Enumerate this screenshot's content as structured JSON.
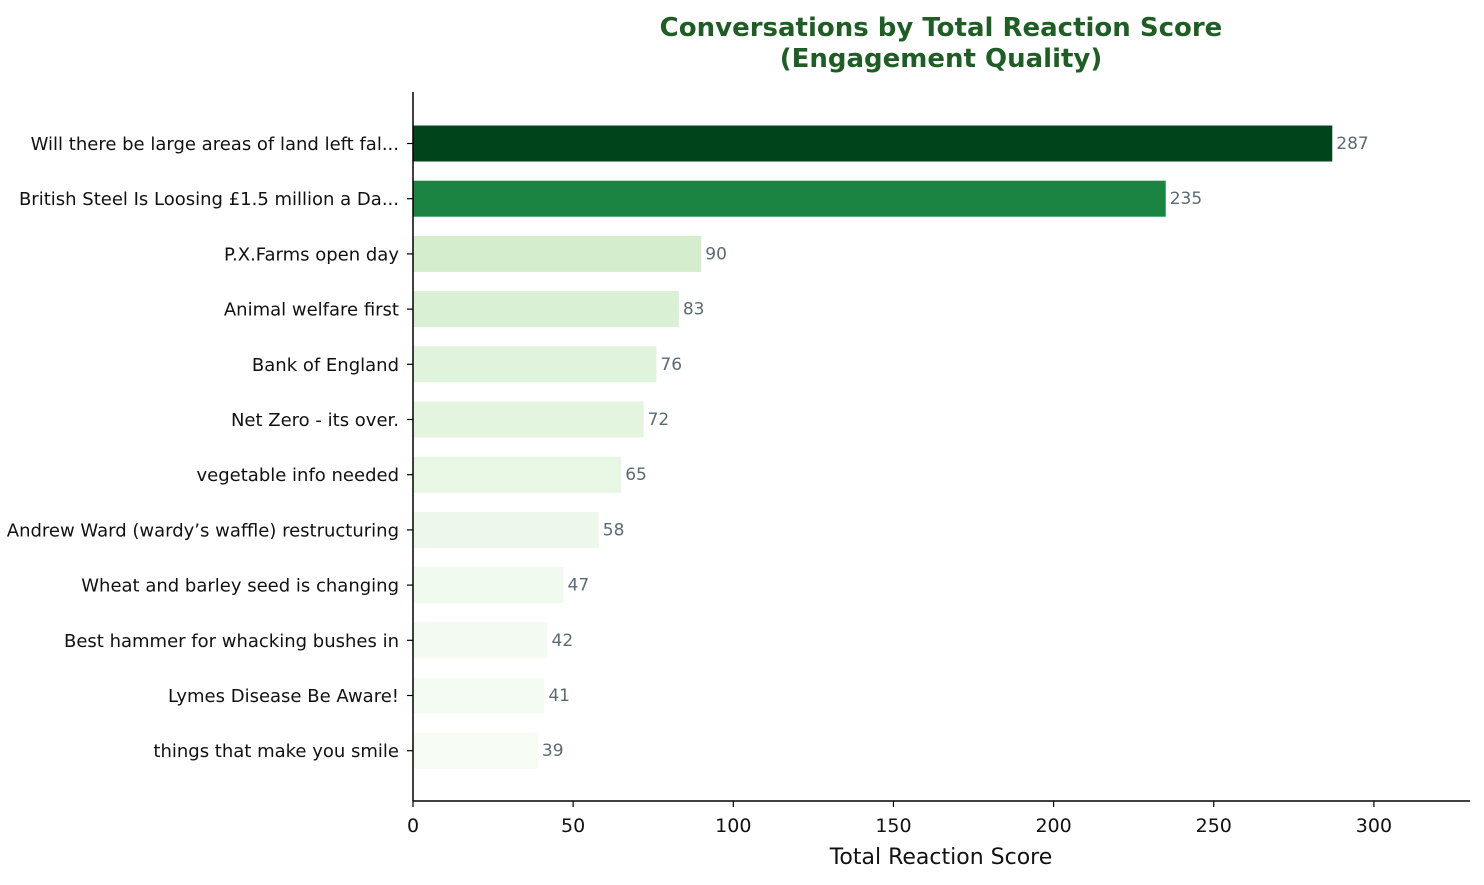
{
  "chart_data": {
    "type": "bar",
    "orientation": "horizontal",
    "title": "Conversations by Total Reaction Score",
    "subtitle": "(Engagement Quality)",
    "xlabel": "Total Reaction Score",
    "ylabel": "",
    "xlim": [
      0,
      330
    ],
    "xticks": [
      0,
      50,
      100,
      150,
      200,
      250,
      300
    ],
    "grid": false,
    "legend": "none",
    "categories": [
      "Will there be large areas of land left fal...",
      "British Steel Is Loosing £1.5 million a Da...",
      "P.X.Farms open day",
      "Animal welfare first",
      "Bank of England",
      "Net Zero - its over.",
      "vegetable info needed",
      "Andrew Ward (wardy’s waffle) restructuring",
      "Wheat and barley seed is changing",
      "Best hammer for whacking bushes in",
      "Lymes Disease Be Aware!",
      "things that make you smile"
    ],
    "values": [
      287,
      235,
      90,
      83,
      76,
      72,
      65,
      58,
      47,
      42,
      41,
      39
    ],
    "colors": [
      "#00441b",
      "#1b8442",
      "#d3edcd",
      "#daf0d5",
      "#e0f3dc",
      "#e3f4df",
      "#e8f6e4",
      "#ecf8e9",
      "#f1faef",
      "#f3faf1",
      "#f4fbf2",
      "#f6fbf4"
    ],
    "value_label_color": "#5c6b73",
    "title_color": "#1e5e25"
  }
}
